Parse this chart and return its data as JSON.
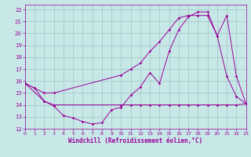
{
  "xlabel": "Windchill (Refroidissement éolien,°C)",
  "bg_color": "#c8e8e8",
  "grid_color": "#a0c4c4",
  "line_color": "#990099",
  "xlim": [
    0,
    23
  ],
  "ylim": [
    12,
    22.4
  ],
  "xticks": [
    0,
    1,
    2,
    3,
    4,
    5,
    6,
    7,
    8,
    9,
    10,
    11,
    12,
    13,
    14,
    15,
    16,
    17,
    18,
    19,
    20,
    21,
    22,
    23
  ],
  "yticks": [
    12,
    13,
    14,
    15,
    16,
    17,
    18,
    19,
    20,
    21,
    22
  ],
  "line1_x": [
    0,
    1,
    2,
    3,
    4,
    5,
    6,
    7,
    8,
    9,
    10,
    11,
    12,
    13,
    14,
    15,
    16,
    17,
    18,
    19,
    20,
    21,
    22,
    23
  ],
  "line1_y": [
    15.8,
    15.4,
    14.3,
    13.9,
    13.1,
    12.9,
    12.6,
    12.4,
    12.5,
    13.6,
    13.8,
    14.8,
    15.5,
    16.7,
    15.8,
    18.5,
    20.3,
    21.4,
    21.8,
    21.8,
    19.8,
    16.4,
    14.7,
    14.1
  ],
  "line2_x": [
    0,
    2,
    3,
    10,
    11,
    12,
    13,
    14,
    15,
    16,
    17,
    18,
    19,
    20,
    21,
    22,
    23
  ],
  "line2_y": [
    15.8,
    14.3,
    14.0,
    14.0,
    14.0,
    14.0,
    14.0,
    14.0,
    14.0,
    14.0,
    14.0,
    14.0,
    14.0,
    14.0,
    14.0,
    14.0,
    14.1
  ],
  "line3_x": [
    0,
    1,
    2,
    3,
    10,
    11,
    12,
    13,
    14,
    15,
    16,
    17,
    18,
    19,
    20,
    21,
    22,
    23
  ],
  "line3_y": [
    15.8,
    15.4,
    15.0,
    15.0,
    16.5,
    17.0,
    17.5,
    18.5,
    19.3,
    20.3,
    21.3,
    21.5,
    21.5,
    21.5,
    19.8,
    21.5,
    16.4,
    14.1
  ]
}
